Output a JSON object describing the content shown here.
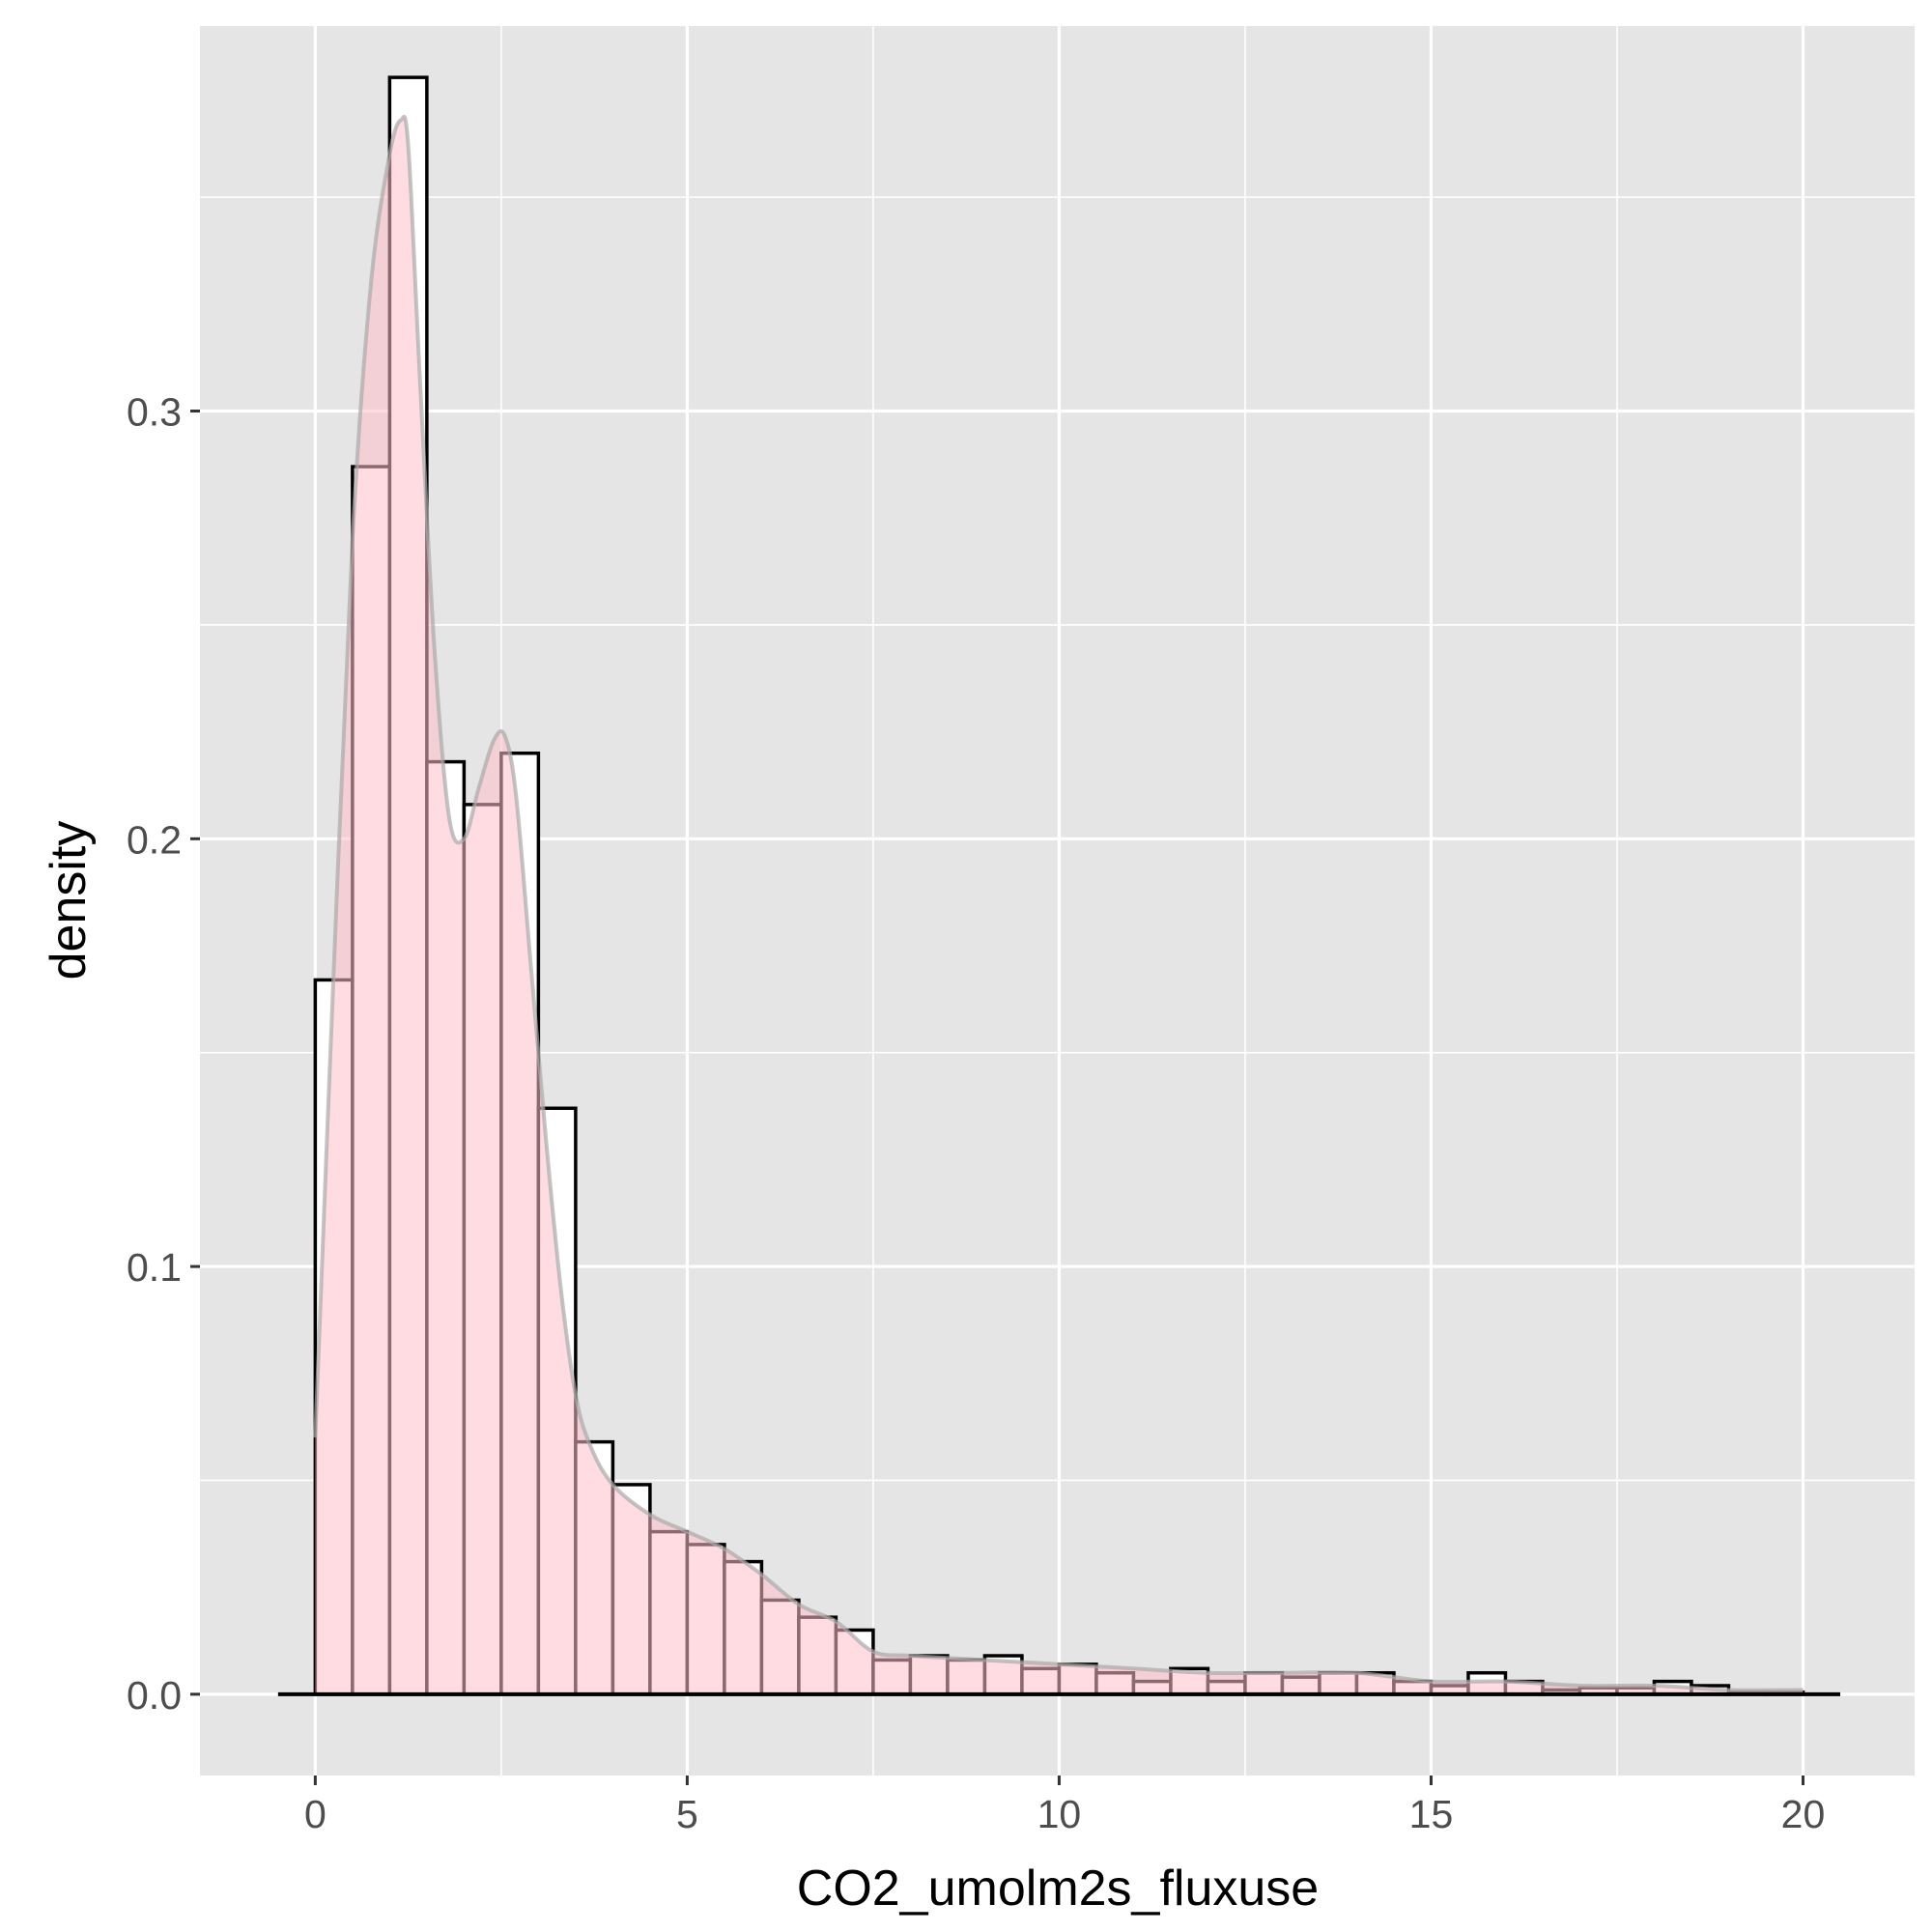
{
  "chart_data": {
    "type": "bar",
    "xlabel": "CO2_umolm2s_fluxuse",
    "ylabel": "density",
    "xlim": [
      -1.55,
      21.5
    ],
    "ylim": [
      -0.019,
      0.39
    ],
    "x_ticks": [
      0,
      5,
      10,
      15,
      20
    ],
    "x_tick_labels": [
      "0",
      "5",
      "10",
      "15",
      "20"
    ],
    "y_ticks": [
      0.0,
      0.1,
      0.2,
      0.3
    ],
    "y_tick_labels": [
      "0.0",
      "0.1",
      "0.2",
      "0.3"
    ],
    "grid": true,
    "bin_width": 0.5,
    "bin_starts": [
      0,
      0.5,
      1,
      1.5,
      2,
      2.5,
      3,
      3.5,
      4,
      4.5,
      5,
      5.5,
      6,
      6.5,
      7,
      7.5,
      8,
      8.5,
      9,
      9.5,
      10,
      10.5,
      11,
      11.5,
      12,
      12.5,
      13,
      13.5,
      14,
      14.5,
      15,
      15.5,
      16,
      16.5,
      17,
      17.5,
      18,
      18.5,
      19,
      19.5
    ],
    "values": [
      0.167,
      0.287,
      0.378,
      0.218,
      0.208,
      0.22,
      0.137,
      0.059,
      0.049,
      0.038,
      0.035,
      0.031,
      0.022,
      0.018,
      0.015,
      0.008,
      0.009,
      0.008,
      0.009,
      0.006,
      0.007,
      0.005,
      0.003,
      0.006,
      0.003,
      0.005,
      0.004,
      0.005,
      0.005,
      0.003,
      0.002,
      0.005,
      0.003,
      0.001,
      0.0015,
      0.0015,
      0.003,
      0.002,
      0.0005,
      0.0005
    ],
    "density_curve": {
      "x": [
        0,
        0.25,
        0.5,
        0.75,
        1.0,
        1.15,
        1.25,
        1.4,
        1.6,
        1.8,
        2.0,
        2.2,
        2.4,
        2.55,
        2.7,
        2.9,
        3.1,
        3.3,
        3.5,
        3.7,
        4.0,
        4.5,
        5.0,
        5.5,
        6.0,
        6.5,
        7.0,
        7.5,
        8.0,
        9.0,
        10.0,
        11.0,
        12.0,
        13.0,
        14.0,
        15.0,
        16.0,
        17.0,
        18.0,
        19.0,
        20.0
      ],
      "y": [
        0.06,
        0.17,
        0.27,
        0.33,
        0.36,
        0.368,
        0.362,
        0.31,
        0.245,
        0.205,
        0.2,
        0.212,
        0.223,
        0.224,
        0.21,
        0.17,
        0.13,
        0.095,
        0.07,
        0.058,
        0.049,
        0.042,
        0.038,
        0.034,
        0.028,
        0.021,
        0.017,
        0.01,
        0.009,
        0.008,
        0.007,
        0.006,
        0.005,
        0.005,
        0.005,
        0.003,
        0.003,
        0.002,
        0.002,
        0.001,
        0.001
      ]
    },
    "baseline_range": [
      -0.5,
      20.5
    ],
    "colors": {
      "panel_background": "#e5e5e5",
      "grid": "#ffffff",
      "bar_fill": "#ffffff",
      "bar_outline": "#000000",
      "density_fill": "#ffc0cb",
      "density_fill_opacity": 0.55,
      "density_outline": "#a9a9a9"
    }
  }
}
